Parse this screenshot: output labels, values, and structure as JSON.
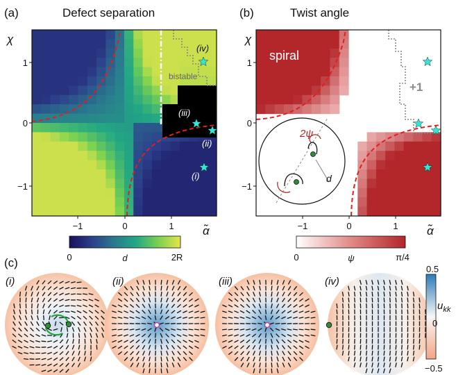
{
  "panels": {
    "a": {
      "label": "(a)",
      "title": "Defect separation"
    },
    "b": {
      "label": "(b)",
      "title": "Twist angle"
    },
    "c": {
      "label": "(c)"
    }
  },
  "axes": {
    "ylabel": "χ",
    "xlabel": "α̃",
    "x_ticks": [
      "−1",
      "0",
      "1"
    ],
    "y_ticks": [
      "1",
      "0",
      "−1"
    ]
  },
  "annotations": {
    "a": {
      "bistable": "bistable",
      "iii": "(iii)",
      "iv": "(iv)",
      "ii": "(ii)",
      "i": "(i)"
    },
    "b": {
      "spiral": "spiral",
      "plus_one": "+1",
      "two_psi": "2ψ",
      "d": "d"
    }
  },
  "colorbars": {
    "d": {
      "label": "d",
      "min": "0",
      "max": "2R",
      "colormap": "viridis"
    },
    "psi": {
      "label": "ψ",
      "min": "0",
      "max": "π/4",
      "colormap": "white-red"
    },
    "ukk": {
      "label": "u_kk",
      "label_main": "u",
      "label_sub": "kk",
      "ticks": [
        "0.5",
        "0",
        "−0.5"
      ],
      "colormap": "orange-white-blue"
    }
  },
  "discs": [
    {
      "label": "(i)",
      "type": "spiral-pair"
    },
    {
      "label": "(ii)",
      "type": "radial"
    },
    {
      "label": "(iii)",
      "type": "radial"
    },
    {
      "label": "(iv)",
      "type": "boojum-pair"
    }
  ],
  "colors": {
    "dashed_red": "#e0201e",
    "star": "#35e6d4",
    "psi_red": "#b3262a",
    "green_dot": "#2e8b3a",
    "arrow_green": "#1fa63f"
  }
}
